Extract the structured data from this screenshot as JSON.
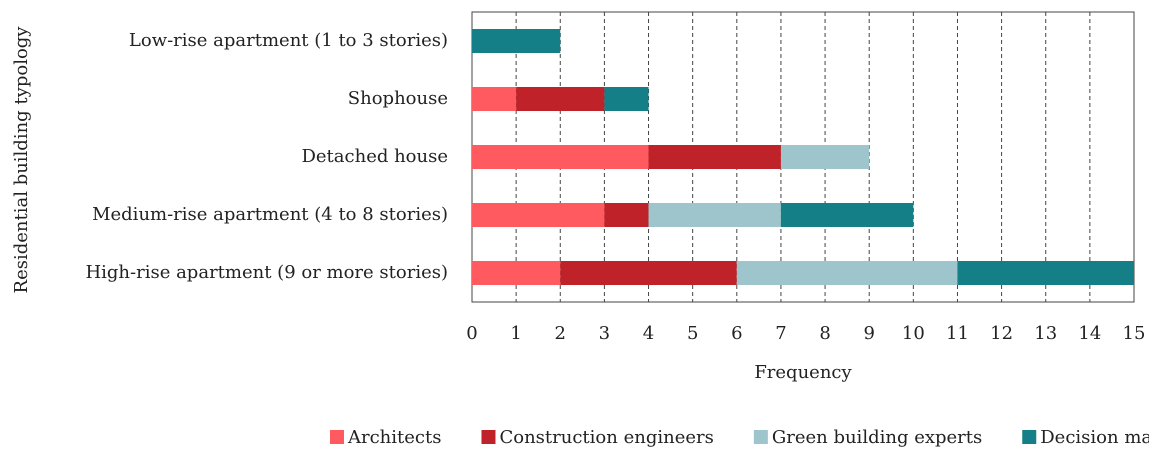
{
  "chart_data": {
    "type": "stacked_barh",
    "xlabel": "Frequency",
    "ylabel": "Residential building typology",
    "categories": [
      "Low-rise apartment (1 to 3 stories)",
      "Shophouse",
      "Detached house",
      "Medium-rise apartment (4 to 8 stories)",
      "High-rise apartment (9 or more stories)"
    ],
    "series": [
      {
        "name": "Architects",
        "color": "#ff5a5f",
        "values": [
          0,
          1,
          4,
          3,
          2
        ]
      },
      {
        "name": "Construction engineers",
        "color": "#c0222a",
        "values": [
          0,
          2,
          3,
          1,
          4
        ]
      },
      {
        "name": "Green building experts",
        "color": "#9dc5cb",
        "values": [
          0,
          0,
          2,
          3,
          5
        ]
      },
      {
        "name": "Decision makers",
        "color": "#147f86",
        "values": [
          2,
          1,
          0,
          3,
          4
        ]
      }
    ],
    "xlim": [
      0,
      15
    ],
    "xticks": [
      0,
      1,
      2,
      3,
      4,
      5,
      6,
      7,
      8,
      9,
      10,
      11,
      12,
      13,
      14,
      15
    ],
    "grid": true,
    "legend": "bottom"
  }
}
